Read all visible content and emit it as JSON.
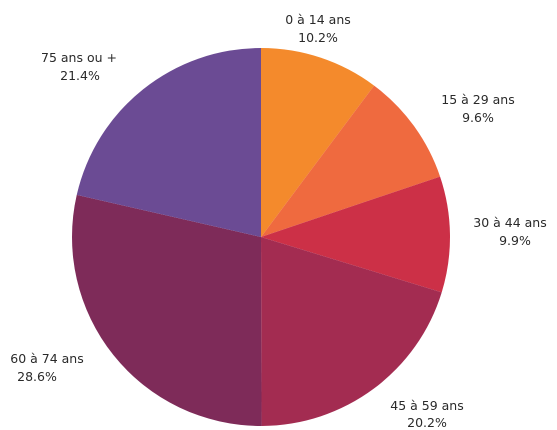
{
  "chart_data": {
    "type": "pie",
    "title": "",
    "start_angle_deg": 0,
    "direction": "clockwise",
    "slices": [
      {
        "label": "0 à 14 ans",
        "value": 10.2,
        "value_label": "10.2%",
        "color": "#f48a2c"
      },
      {
        "label": "15 à 29 ans",
        "value": 9.6,
        "value_label": "9.6%",
        "color": "#ef6a3f"
      },
      {
        "label": "30 à 44 ans",
        "value": 9.9,
        "value_label": "9.9%",
        "color": "#cc3047"
      },
      {
        "label": "45 à 59 ans",
        "value": 20.2,
        "value_label": "20.2%",
        "color": "#a32c51"
      },
      {
        "label": "60 à 74 ans",
        "value": 28.6,
        "value_label": "28.6%",
        "color": "#7e2b59"
      },
      {
        "label": "75 ans ou +",
        "value": 21.4,
        "value_label": "21.4%",
        "color": "#6b4b94"
      }
    ]
  }
}
